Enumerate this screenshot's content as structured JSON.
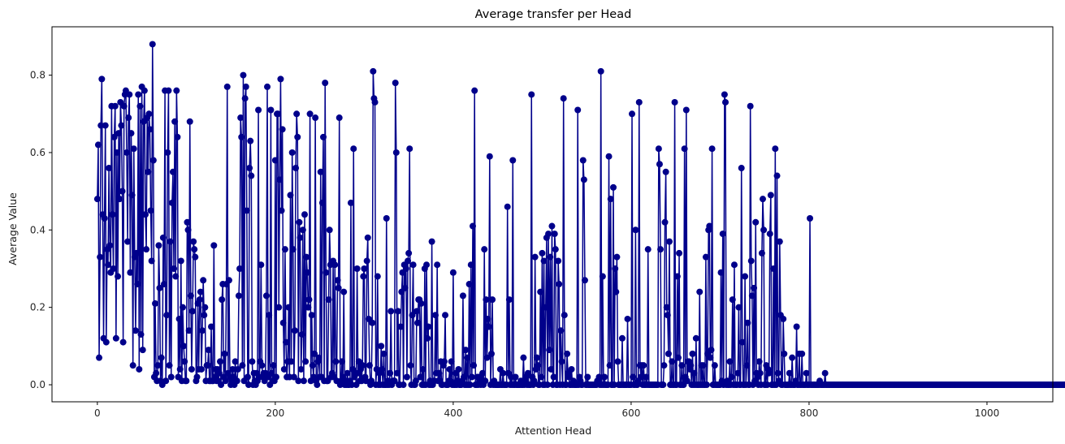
{
  "chart_data": {
    "type": "line",
    "title": "Average transfer per Head",
    "xlabel": "Attention Head",
    "ylabel": "Average Value",
    "xlim": [
      -51,
      1074
    ],
    "ylim": [
      -0.044,
      0.925
    ],
    "xticks": [
      0,
      200,
      400,
      600,
      800,
      1000
    ],
    "yticks": [
      0.0,
      0.2,
      0.4,
      0.6,
      0.8
    ],
    "xtick_labels": [
      "0",
      "200",
      "400",
      "600",
      "800",
      "1000"
    ],
    "ytick_labels": [
      "0.0",
      "0.2",
      "0.4",
      "0.6",
      "0.8"
    ],
    "grid": false,
    "legend": "none",
    "marker": "circle",
    "n_points": 1024,
    "series": [
      {
        "color": "#00008b",
        "x_start": 0,
        "x_step": 1,
        "values": [
          0.48,
          0.62,
          0.07,
          0.33,
          0.67,
          0.79,
          0.44,
          0.12,
          0.43,
          0.67,
          0.11,
          0.35,
          0.31,
          0.56,
          0.36,
          0.29,
          0.72,
          0.44,
          0.3,
          0.64,
          0.72,
          0.12,
          0.6,
          0.28,
          0.65,
          0.48,
          0.73,
          0.67,
          0.5,
          0.11,
          0.72,
          0.75,
          0.76,
          0.6,
          0.37,
          0.69,
          0.75,
          0.29,
          0.65,
          0.49,
          0.05,
          0.61,
          0.33,
          0.14,
          0.34,
          0.26,
          0.75,
          0.04,
          0.72,
          0.13,
          0.77,
          0.09,
          0.68,
          0.76,
          0.44,
          0.35,
          0.69,
          0.55,
          0.7,
          0.66,
          0.45,
          0.32,
          0.88,
          0.58,
          0.02,
          0.21,
          0.03,
          0.01,
          0.05,
          0.36,
          0.25,
          0.01,
          0.07,
          0.0,
          0.38,
          0.26,
          0.76,
          0.01,
          0.18,
          0.6,
          0.76,
          0.05,
          0.37,
          0.02,
          0.47,
          0.55,
          0.3,
          0.68,
          0.28,
          0.76,
          0.64,
          0.02,
          0.17,
          0.04,
          0.32,
          0.01,
          0.2,
          0.1,
          0.06,
          0.01,
          0.01,
          0.42,
          0.4,
          0.14,
          0.68,
          0.23,
          0.04,
          0.19,
          0.37,
          0.35,
          0.33,
          0.01,
          0.02,
          0.21,
          0.04,
          0.22,
          0.24,
          0.04,
          0.14,
          0.27,
          0.18,
          0.2,
          0.01,
          0.05,
          0.05,
          0.09,
          0.01,
          0.01,
          0.15,
          0.01,
          0.01,
          0.36,
          0.02,
          0.04,
          0.01,
          0.04,
          0.01,
          0.03,
          0.06,
          0.0,
          0.22,
          0.26,
          0.02,
          0.08,
          0.01,
          0.26,
          0.77,
          0.03,
          0.27,
          0.02,
          0.0,
          0.01,
          0.04,
          0.02,
          0.0,
          0.06,
          0.01,
          0.01,
          0.04,
          0.23,
          0.3,
          0.69,
          0.64,
          0.05,
          0.8,
          0.01,
          0.74,
          0.77,
          0.45,
          0.02,
          0.0,
          0.56,
          0.63,
          0.54,
          0.06,
          0.0,
          0.03,
          0.01,
          0.0,
          0.03,
          0.01,
          0.71,
          0.02,
          0.06,
          0.31,
          0.05,
          0.02,
          0.03,
          0.01,
          0.03,
          0.23,
          0.77,
          0.02,
          0.18,
          0.0,
          0.71,
          0.03,
          0.01,
          0.05,
          0.01,
          0.58,
          0.02,
          0.7,
          0.7,
          0.2,
          0.53,
          0.79,
          0.45,
          0.66,
          0.16,
          0.04,
          0.35,
          0.11,
          0.02,
          0.06,
          0.2,
          0.02,
          0.49,
          0.06,
          0.6,
          0.35,
          0.02,
          0.14,
          0.56,
          0.7,
          0.64,
          0.01,
          0.42,
          0.38,
          0.04,
          0.13,
          0.4,
          0.01,
          0.44,
          0.06,
          0.33,
          0.29,
          0.2,
          0.22,
          0.7,
          0.01,
          0.18,
          0.05,
          0.02,
          0.08,
          0.69,
          0.01,
          0.0,
          0.06,
          0.07,
          0.02,
          0.55,
          0.02,
          0.47,
          0.64,
          0.01,
          0.78,
          0.29,
          0.01,
          0.01,
          0.22,
          0.4,
          0.31,
          0.02,
          0.03,
          0.32,
          0.02,
          0.31,
          0.06,
          0.01,
          0.27,
          0.25,
          0.69,
          0.0,
          0.01,
          0.06,
          0.02,
          0.24,
          0.0,
          0.01,
          0.0,
          0.03,
          0.0,
          0.0,
          0.01,
          0.47,
          0.0,
          0.04,
          0.61,
          0.02,
          0.03,
          0.0,
          0.3,
          0.03,
          0.06,
          0.01,
          0.04,
          0.01,
          0.05,
          0.28,
          0.3,
          0.02,
          0.01,
          0.32,
          0.38,
          0.17,
          0.05,
          0.0,
          0.01,
          0.16,
          0.81,
          0.74,
          0.73,
          0.0,
          0.04,
          0.28,
          0.0,
          0.03,
          0.0,
          0.1,
          0.04,
          0.0,
          0.08,
          0.0,
          0.0,
          0.43,
          0.0,
          0.01,
          0.0,
          0.03,
          0.19,
          0.0,
          0.01,
          0.01,
          0.01,
          0.78,
          0.6,
          0.03,
          0.19,
          0.0,
          0.0,
          0.15,
          0.24,
          0.29,
          0.0,
          0.31,
          0.25,
          0.3,
          0.02,
          0.32,
          0.34,
          0.61,
          0.05,
          0.0,
          0.18,
          0.31,
          0.0,
          0.0,
          0.01,
          0.19,
          0.16,
          0.22,
          0.22,
          0.02,
          0.21,
          0.0,
          0.04,
          0.0,
          0.3,
          0.0,
          0.31,
          0.12,
          0.15,
          0.0,
          0.01,
          0.0,
          0.37,
          0.0,
          0.01,
          0.01,
          0.18,
          0.03,
          0.31,
          0.01,
          0.03,
          0.01,
          0.06,
          0.0,
          0.0,
          0.05,
          0.06,
          0.18,
          0.0,
          0.0,
          0.0,
          0.01,
          0.04,
          0.01,
          0.06,
          0.0,
          0.29,
          0.0,
          0.0,
          0.03,
          0.0,
          0.01,
          0.04,
          0.0,
          0.0,
          0.0,
          0.01,
          0.23,
          0.02,
          0.0,
          0.09,
          0.0,
          0.07,
          0.0,
          0.26,
          0.0,
          0.31,
          0.02,
          0.41,
          0.05,
          0.76,
          0.0,
          0.0,
          0.02,
          0.0,
          0.02,
          0.01,
          0.0,
          0.01,
          0.03,
          0.0,
          0.35,
          0.01,
          0.22,
          0.07,
          0.17,
          0.15,
          0.59,
          0.0,
          0.08,
          0.22,
          0.0,
          0.01,
          0.0,
          0.0,
          0.0,
          0.0,
          0.0,
          0.0,
          0.04,
          0.0,
          0.0,
          0.03,
          0.0,
          0.0,
          0.0,
          0.0,
          0.46,
          0.03,
          0.22,
          0.0,
          0.02,
          0.0,
          0.58,
          0.0,
          0.0,
          0.02,
          0.0,
          0.0,
          0.0,
          0.0,
          0.0,
          0.01,
          0.0,
          0.0,
          0.07,
          0.0,
          0.01,
          0.02,
          0.0,
          0.03,
          0.0,
          0.0,
          0.0,
          0.75,
          0.02,
          0.0,
          0.01,
          0.33,
          0.04,
          0.07,
          0.05,
          0.0,
          0.0,
          0.24,
          0.02,
          0.34,
          0.0,
          0.32,
          0.0,
          0.2,
          0.38,
          0.0,
          0.39,
          0.09,
          0.33,
          0.04,
          0.41,
          0.0,
          0.02,
          0.39,
          0.35,
          0.0,
          0.0,
          0.32,
          0.26,
          0.0,
          0.14,
          0.06,
          0.0,
          0.74,
          0.18,
          0.0,
          0.0,
          0.08,
          0.03,
          0.02,
          0.0,
          0.0,
          0.04,
          0.0,
          0.01,
          0.0,
          0.0,
          0.0,
          0.0,
          0.71,
          0.0,
          0.02,
          0.01,
          0.0,
          0.0,
          0.58,
          0.53,
          0.27,
          0.0,
          0.0,
          0.02,
          0.0,
          0.0,
          0.0,
          0.0,
          0.0,
          0.0,
          0.0,
          0.0,
          0.0,
          0.0,
          0.01,
          0.01,
          0.02,
          0.0,
          0.81,
          0.0,
          0.28,
          0.0,
          0.02,
          0.0,
          0.0,
          0.0,
          0.0,
          0.59,
          0.05,
          0.48,
          0.0,
          0.0,
          0.51,
          0.0,
          0.3,
          0.24,
          0.33,
          0.06,
          0.0,
          0.0,
          0.0,
          0.0,
          0.12,
          0.0,
          0.0,
          0.0,
          0.0,
          0.0,
          0.17,
          0.0,
          0.0,
          0.0,
          0.0,
          0.7,
          0.02,
          0.0,
          0.0,
          0.4,
          0.0,
          0.0,
          0.01,
          0.73,
          0.05,
          0.02,
          0.05,
          0.0,
          0.05,
          0.0,
          0.0,
          0.02,
          0.0,
          0.35,
          0.0,
          0.0,
          0.0,
          0.0,
          0.0,
          0.0,
          0.0,
          0.0,
          0.0,
          0.0,
          0.0,
          0.61,
          0.57,
          0.35,
          0.0,
          0.0,
          0.0,
          0.05,
          0.42,
          0.55,
          0.2,
          0.18,
          0.08,
          0.37,
          0.0,
          0.0,
          0.06,
          0.0,
          0.0,
          0.73,
          0.0,
          0.0,
          0.28,
          0.07,
          0.34,
          0.0,
          0.0,
          0.05,
          0.0,
          0.0,
          0.61,
          0.02,
          0.71,
          0.01,
          0.06,
          0.06,
          0.04,
          0.05,
          0.0,
          0.08,
          0.0,
          0.03,
          0.0,
          0.12,
          0.0,
          0.0,
          0.0,
          0.24,
          0.0,
          0.05,
          0.0,
          0.05,
          0.0,
          0.0,
          0.33,
          0.0,
          0.08,
          0.4,
          0.41,
          0.07,
          0.09,
          0.61,
          0.0,
          0.0,
          0.05,
          0.0,
          0.0,
          0.0,
          0.0,
          0.0,
          0.0,
          0.29,
          0.01,
          0.39,
          0.0,
          0.75,
          0.73,
          0.0,
          0.01,
          0.0,
          0.0,
          0.06,
          0.0,
          0.02,
          0.22,
          0.0,
          0.31,
          0.0,
          0.0,
          0.0,
          0.03,
          0.2,
          0.0,
          0.0,
          0.56,
          0.11,
          0.0,
          0.0,
          0.28,
          0.0,
          0.05,
          0.16,
          0.0,
          0.0,
          0.72,
          0.32,
          0.23,
          0.0,
          0.25,
          0.01,
          0.42,
          0.03,
          0.02,
          0.0,
          0.06,
          0.03,
          0.0,
          0.34,
          0.48,
          0.4,
          0.0,
          0.0,
          0.05,
          0.0,
          0.04,
          0.03,
          0.39,
          0.49,
          0.0,
          0.0,
          0.3,
          0.0,
          0.61,
          0.0,
          0.54,
          0.03,
          0.01,
          0.37,
          0.18,
          0.0,
          0.0,
          0.17,
          0.08,
          0.0,
          0.0,
          0.0,
          0.0,
          0.0,
          0.03,
          0.0,
          0.0,
          0.07,
          0.0,
          0.0,
          0.0,
          0.01,
          0.15,
          0.0,
          0.0,
          0.08,
          0.0,
          0.0,
          0.08,
          0.0,
          0.0,
          0.0,
          0.0,
          0.03,
          0.0,
          0.0,
          0.0,
          0.43,
          0.0,
          0.0,
          0.0,
          0.0,
          0.0,
          0.0,
          0.0,
          0.0,
          0.0,
          0.0,
          0.01,
          0.0,
          0.0,
          0.0,
          0.0,
          0.0,
          0.03,
          0.0,
          0.0,
          0.0,
          0.0,
          0.0,
          0.0,
          0.0,
          0.0,
          0.0,
          0.0,
          0.0,
          0.0,
          0.0,
          0.0,
          0.0,
          0.0,
          0.0,
          0.0,
          0.0,
          0.0,
          0.0,
          0.0,
          0.0,
          0.0,
          0.0,
          0.0,
          0.0,
          0.0,
          0.0,
          0.0,
          0.0,
          0.0,
          0.0,
          0.0,
          0.0,
          0.0,
          0.0,
          0.0,
          0.0,
          0.0,
          0.0,
          0.0,
          0.0,
          0.0,
          0.0,
          0.0,
          0.0,
          0.0,
          0.0,
          0.0,
          0.0,
          0.0,
          0.0,
          0.0,
          0.0,
          0.0,
          0.0,
          0.0,
          0.0,
          0.0,
          0.0,
          0.0,
          0.0,
          0.0,
          0.0,
          0.0,
          0.0,
          0.0,
          0.0,
          0.0,
          0.0,
          0.0,
          0.0,
          0.0,
          0.0,
          0.0,
          0.0,
          0.0,
          0.0,
          0.0,
          0.0,
          0.0,
          0.0,
          0.0,
          0.0,
          0.0,
          0.0,
          0.0,
          0.0,
          0.0,
          0.0,
          0.0,
          0.0,
          0.0,
          0.0,
          0.0,
          0.0,
          0.0,
          0.0,
          0.0,
          0.0,
          0.0,
          0.0,
          0.0,
          0.0,
          0.0,
          0.0,
          0.0,
          0.0,
          0.0,
          0.0,
          0.0,
          0.0,
          0.0,
          0.0,
          0.0,
          0.0,
          0.0,
          0.0,
          0.0,
          0.0,
          0.0,
          0.0,
          0.0,
          0.0,
          0.0,
          0.0,
          0.0,
          0.0,
          0.0,
          0.0,
          0.0,
          0.0,
          0.0,
          0.0,
          0.0,
          0.0,
          0.0,
          0.0,
          0.0,
          0.0,
          0.0,
          0.0,
          0.0,
          0.0,
          0.0,
          0.0,
          0.0,
          0.0,
          0.0,
          0.0,
          0.0,
          0.0,
          0.0,
          0.0,
          0.0,
          0.0,
          0.0,
          0.0,
          0.0,
          0.0,
          0.0,
          0.0,
          0.0,
          0.0,
          0.0,
          0.0,
          0.0,
          0.0,
          0.0,
          0.0,
          0.0,
          0.0,
          0.0,
          0.0,
          0.0,
          0.0,
          0.0,
          0.0,
          0.0,
          0.0,
          0.0,
          0.0,
          0.0,
          0.0,
          0.0,
          0.0,
          0.0,
          0.0,
          0.0,
          0.0,
          0.0,
          0.0,
          0.0,
          0.0,
          0.0,
          0.0,
          0.0,
          0.0,
          0.0,
          0.0,
          0.0,
          0.0,
          0.0,
          0.0,
          0.0,
          0.0,
          0.0,
          0.0,
          0.0,
          0.0,
          0.0,
          0.0,
          0.0,
          0.0,
          0.0,
          0.0,
          0.0,
          0.0,
          0.0,
          0.0,
          0.0,
          0.0,
          0.0,
          0.0,
          0.0,
          0.0,
          0.0,
          0.0,
          0.0,
          0.0,
          0.0,
          0.0,
          0.0,
          0.0,
          0.0,
          0.0,
          0.0,
          0.0,
          0.0,
          0.0,
          0.0,
          0.0,
          0.0,
          0.0,
          0.0,
          0.0,
          0.0,
          0.0,
          0.0,
          0.0,
          0.0,
          0.0,
          0.0,
          0.0,
          0.0,
          0.0,
          0.0,
          0.0,
          0.0,
          0.0,
          0.0,
          0.0,
          0.0,
          0.0,
          0.0,
          0.0,
          0.0,
          0.0,
          0.0,
          0.0,
          0.0,
          0.0,
          0.0,
          0.0,
          0.0,
          0.0,
          0.0,
          0.0,
          0.0,
          0.0,
          0.0,
          0.0
        ]
      }
    ]
  }
}
